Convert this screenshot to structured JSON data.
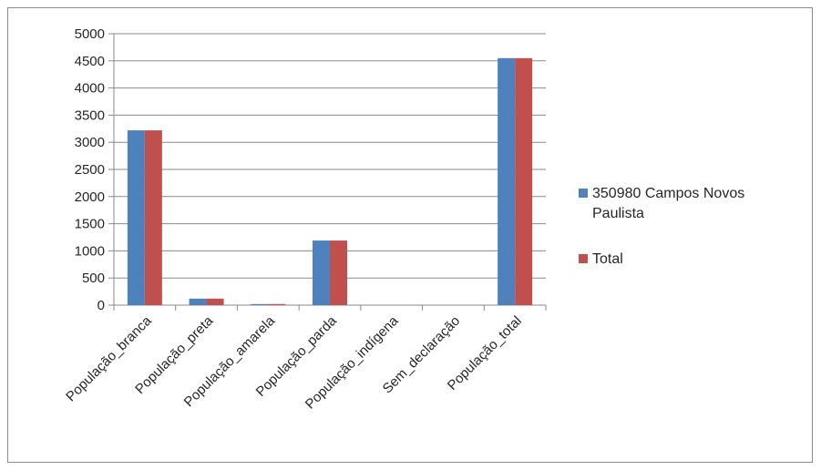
{
  "chart_data": {
    "type": "bar",
    "categories": [
      "População_branca",
      "População_preta",
      "População_amarela",
      "População_parda",
      "População_indígena",
      "Sem_declaração",
      "População_total"
    ],
    "series": [
      {
        "name": "350980 Campos Novos Paulista",
        "color": "#4f81bd",
        "values": [
          3220,
          120,
          20,
          1190,
          0,
          0,
          4550
        ]
      },
      {
        "name": "Total",
        "color": "#c0504d",
        "values": [
          3220,
          120,
          20,
          1190,
          0,
          0,
          4550
        ]
      }
    ],
    "legend_lines": [
      [
        "350980 Campos Novos",
        "Paulista"
      ],
      [
        "Total"
      ]
    ],
    "yticks": [
      0,
      500,
      1000,
      1500,
      2000,
      2500,
      3000,
      3500,
      4000,
      4500,
      5000
    ],
    "ylim": [
      0,
      5000
    ],
    "grid": true,
    "legend_position": "right",
    "title": "",
    "xlabel": "",
    "ylabel": ""
  }
}
